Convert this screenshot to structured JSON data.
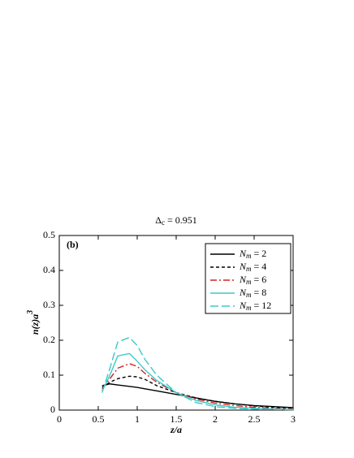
{
  "chart_data": {
    "type": "line",
    "title": "Δc = 0.951",
    "annotation": "(b)",
    "x_label": "z/a",
    "y_label": "n(z)a3",
    "x": [
      0.55,
      0.65,
      0.75,
      0.9,
      1.0,
      1.1,
      1.25,
      1.5,
      1.75,
      2,
      2.25,
      2.5,
      2.75,
      3
    ],
    "series": [
      {
        "name": "Nm = 2",
        "color": "#000000",
        "dash": "none",
        "values": [
          0.07,
          0.075,
          0.072,
          0.068,
          0.065,
          0.061,
          0.055,
          0.045,
          0.035,
          0.025,
          0.018,
          0.013,
          0.01,
          0.007
        ]
      },
      {
        "name": "Nm = 4",
        "color": "#000000",
        "dash": "4,3",
        "values": [
          0.065,
          0.08,
          0.09,
          0.097,
          0.095,
          0.088,
          0.07,
          0.05,
          0.035,
          0.025,
          0.018,
          0.012,
          0.008,
          0.005
        ]
      },
      {
        "name": "Nm = 6",
        "color": "#d62020",
        "dash": "8,3,2,3",
        "values": [
          0.06,
          0.09,
          0.12,
          0.133,
          0.125,
          0.105,
          0.08,
          0.05,
          0.032,
          0.02,
          0.013,
          0.008,
          0.005,
          0.003
        ]
      },
      {
        "name": "Nm = 8",
        "color": "#3ec8c8",
        "dash": "none",
        "values": [
          0.055,
          0.1,
          0.155,
          0.162,
          0.14,
          0.115,
          0.085,
          0.05,
          0.028,
          0.015,
          0.008,
          0.005,
          0.003,
          0.002
        ]
      },
      {
        "name": "Nm = 12",
        "color": "#3ec8c8",
        "dash": "10,4",
        "values": [
          0.05,
          0.12,
          0.195,
          0.208,
          0.185,
          0.145,
          0.1,
          0.05,
          0.022,
          0.01,
          0.005,
          0.003,
          0.002,
          0.001
        ]
      }
    ],
    "xlim": [
      0,
      3
    ],
    "xticks": [
      0,
      0.5,
      1,
      1.5,
      2,
      2.5,
      3
    ],
    "ylim": [
      0,
      0.5
    ],
    "yticks": [
      0,
      0.1,
      0.2,
      0.3,
      0.4,
      0.5
    ],
    "legend": "upper right"
  }
}
